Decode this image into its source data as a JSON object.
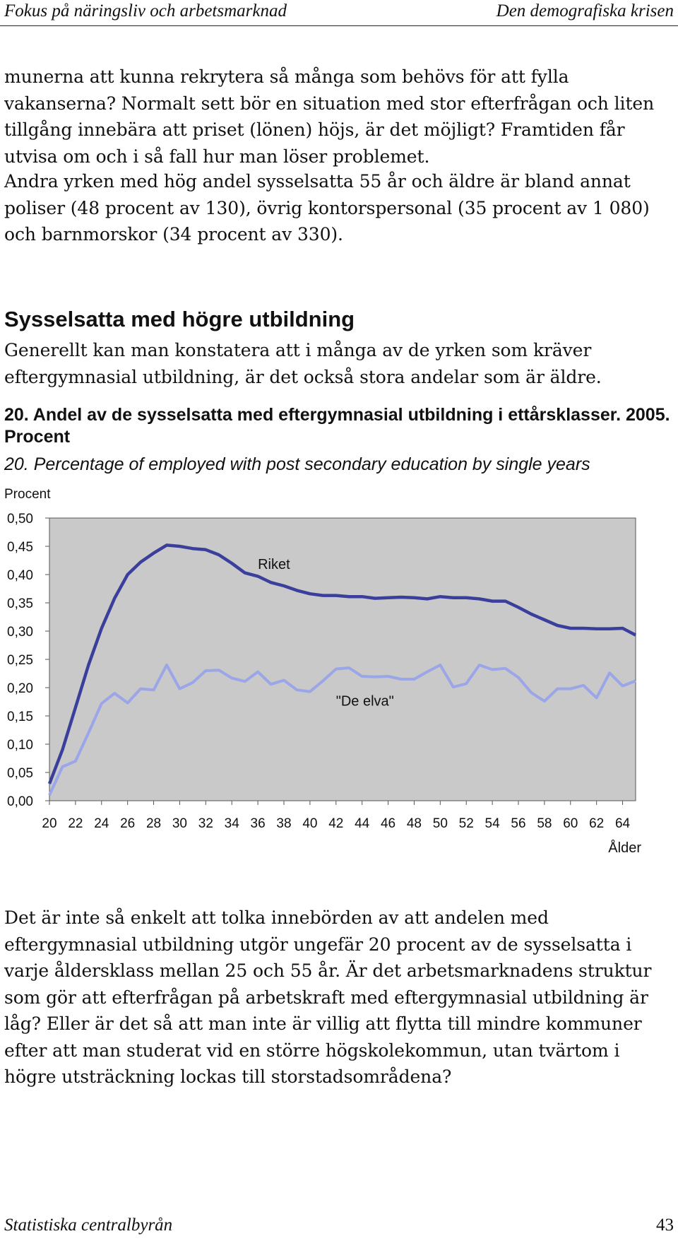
{
  "header": {
    "left": "Fokus på näringsliv och arbetsmarknad",
    "right": "Den demografiska krisen"
  },
  "paragraphs": {
    "p1": "munerna att kunna rekrytera så många som behövs för att fylla vakanserna? Normalt sett bör en situation med stor efterfrågan och liten tillgång innebära att priset (lönen) höjs, är det möjligt? Framtiden får utvisa om och i så fall hur man löser problemet.",
    "p2": "Andra yrken med hög andel sysselsatta 55 år och äldre är bland annat poliser (48 procent av 130), övrig kontorspersonal (35 procent av 1 080) och barnmorskor (34 procent av 330).",
    "heading": "Sysselsatta med högre utbildning",
    "p3": "Generellt kan man konstatera att i många av de yrken som kräver eftergymnasial utbildning, är det också stora andelar som är äldre.",
    "p4": "Det är inte så enkelt att tolka innebörden av att andelen med eftergymnasial utbildning utgör ungefär 20 procent av de sysselsatta i varje åldersklass mellan 25 och 55 år. Är det arbetsmarknadens struktur som gör att efterfrågan på arbetskraft med eftergymnasial utbildning är låg? Eller är det så att man inte är villig att flytta till mindre kommuner efter att man studerat vid en större högskolekommun, utan tvärtom i högre utsträckning lockas till storstadsområdena?"
  },
  "figure": {
    "title": "20. Andel av de sysselsatta med eftergymnasial utbildning i ettårsklasser. 2005. Procent",
    "subtitle": "20. Percentage of employed with post secondary education by single years"
  },
  "chart_data": {
    "type": "line",
    "ylabel": "Procent",
    "xlabel": "Ålder",
    "ylim": [
      0,
      0.5
    ],
    "yticks": [
      "0,00",
      "0,05",
      "0,10",
      "0,15",
      "0,20",
      "0,25",
      "0,30",
      "0,35",
      "0,40",
      "0,45",
      "0,50"
    ],
    "xlim": [
      20,
      65
    ],
    "xticks": [
      "20",
      "22",
      "24",
      "26",
      "28",
      "30",
      "32",
      "34",
      "36",
      "38",
      "40",
      "42",
      "44",
      "46",
      "48",
      "50",
      "52",
      "54",
      "56",
      "58",
      "60",
      "62",
      "64"
    ],
    "grid": false,
    "x": [
      20,
      21,
      22,
      23,
      24,
      25,
      26,
      27,
      28,
      29,
      30,
      31,
      32,
      33,
      34,
      35,
      36,
      37,
      38,
      39,
      40,
      41,
      42,
      43,
      44,
      45,
      46,
      47,
      48,
      49,
      50,
      51,
      52,
      53,
      54,
      55,
      56,
      57,
      58,
      59,
      60,
      61,
      62,
      63,
      64,
      65
    ],
    "series": [
      {
        "name": "Riket",
        "color": "#3b3f9c",
        "values": [
          0.03,
          0.09,
          0.165,
          0.24,
          0.305,
          0.358,
          0.4,
          0.422,
          0.438,
          0.452,
          0.45,
          0.446,
          0.444,
          0.435,
          0.42,
          0.403,
          0.397,
          0.386,
          0.38,
          0.372,
          0.366,
          0.363,
          0.363,
          0.361,
          0.361,
          0.358,
          0.359,
          0.36,
          0.359,
          0.357,
          0.361,
          0.359,
          0.359,
          0.357,
          0.353,
          0.353,
          0.342,
          0.33,
          0.32,
          0.31,
          0.305,
          0.305,
          0.304,
          0.304,
          0.305,
          0.293
        ]
      },
      {
        "name": "\"De elva\"",
        "color": "#9aa6e8",
        "values": [
          0.01,
          0.06,
          0.07,
          0.12,
          0.172,
          0.19,
          0.173,
          0.198,
          0.196,
          0.24,
          0.198,
          0.209,
          0.23,
          0.231,
          0.217,
          0.211,
          0.228,
          0.206,
          0.213,
          0.196,
          0.193,
          0.212,
          0.233,
          0.235,
          0.22,
          0.219,
          0.22,
          0.215,
          0.215,
          0.228,
          0.24,
          0.201,
          0.207,
          0.24,
          0.232,
          0.234,
          0.218,
          0.191,
          0.176,
          0.198,
          0.198,
          0.204,
          0.182,
          0.226,
          0.203,
          0.212
        ]
      }
    ]
  },
  "footer": {
    "left": "Statistiska centralbyrån",
    "page": "43"
  }
}
